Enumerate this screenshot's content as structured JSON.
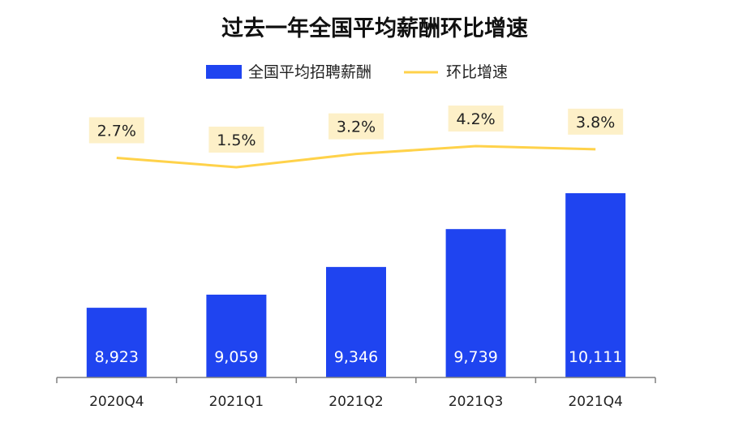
{
  "colors": {
    "bar": "#1f44f0",
    "line": "#ffd24a",
    "label_bg": "#fdf0c8",
    "axis": "#808080"
  },
  "chart_data": {
    "type": "bar",
    "title": "过去一年全国平均薪酬环比增速",
    "categories": [
      "2020Q4",
      "2021Q1",
      "2021Q2",
      "2021Q3",
      "2021Q4"
    ],
    "series": [
      {
        "name": "全国平均招聘薪酬",
        "type": "bar",
        "values": [
          8923,
          9059,
          9346,
          9739,
          10111
        ],
        "labels": [
          "8,923",
          "9,059",
          "9,346",
          "9,739",
          "10,111"
        ]
      },
      {
        "name": "环比增速",
        "type": "line",
        "values": [
          2.7,
          1.5,
          3.2,
          4.2,
          3.8
        ],
        "labels": [
          "2.7%",
          "1.5%",
          "3.2%",
          "4.2%",
          "3.8%"
        ]
      }
    ],
    "legend": "top-center",
    "grid": false
  }
}
